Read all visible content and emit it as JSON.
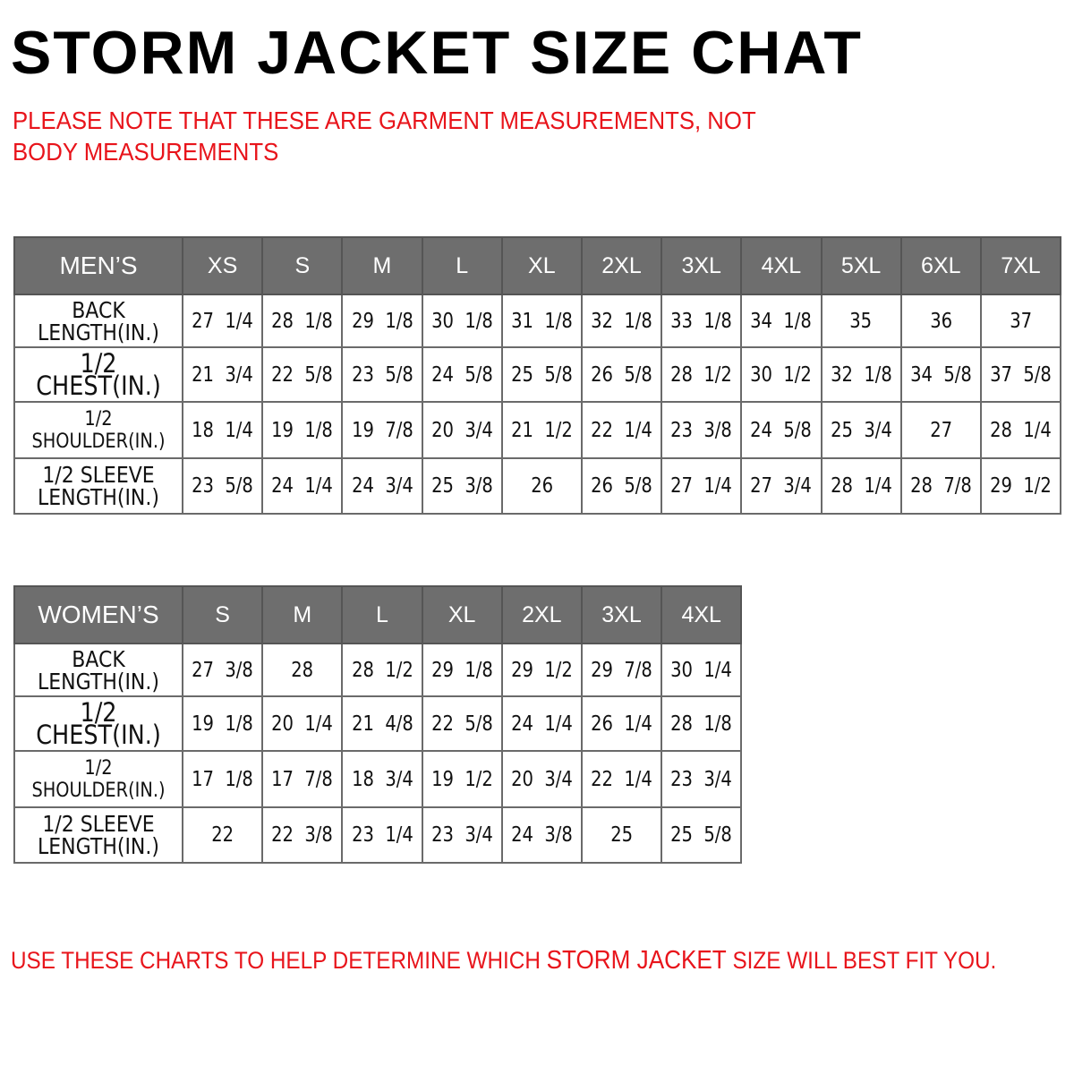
{
  "title": "STORM JACKET SIZE CHAT",
  "note": "PLEASE NOTE THAT THESE ARE GARMENT MEASUREMENTS, NOT BODY MEASUREMENTS",
  "footer": {
    "before": "USE THESE CHARTS TO HELP DETERMINE WHICH ",
    "highlight": "STORM JACKET",
    "after": "  SIZE WILL BEST FIT YOU."
  },
  "colors": {
    "header_bg": "#6e6e6e",
    "note_red": "#e8141b"
  },
  "mens": {
    "corner": "MEN’S",
    "sizes": [
      "XS",
      "S",
      "M",
      "L",
      "XL",
      "2XL",
      "3XL",
      "4XL",
      "5XL",
      "6XL",
      "7XL"
    ],
    "rows": [
      {
        "label": "BACK LENGTH(IN.)",
        "values": [
          "27  1/4",
          "28  1/8",
          "29  1/8",
          "30  1/8",
          "31  1/8",
          "32  1/8",
          "33  1/8",
          "34  1/8",
          "35",
          "36",
          "37"
        ]
      },
      {
        "label": "1/2  CHEST(IN.)",
        "values": [
          "21  3/4",
          "22  5/8",
          "23  5/8",
          "24  5/8",
          "25  5/8",
          "26  5/8",
          "28  1/2",
          "30  1/2",
          "32  1/8",
          "34  5/8",
          "37  5/8"
        ]
      },
      {
        "label": "1/2  SHOULDER(IN.)",
        "values": [
          "18  1/4",
          "19  1/8",
          "19  7/8",
          "20  3/4",
          "21  1/2",
          "22  1/4",
          "23  3/8",
          "24  5/8",
          "25  3/4",
          "27",
          "28  1/4"
        ]
      },
      {
        "label": "1/2  SLEEVE LENGTH(IN.)",
        "values": [
          "23  5/8",
          "24  1/4",
          "24  3/4",
          "25  3/8",
          "26",
          "26  5/8",
          "27  1/4",
          "27  3/4",
          "28  1/4",
          "28  7/8",
          "29  1/2"
        ]
      }
    ]
  },
  "womens": {
    "corner": "WOMEN’S",
    "sizes": [
      "S",
      "M",
      "L",
      "XL",
      "2XL",
      "3XL",
      "4XL"
    ],
    "rows": [
      {
        "label": "BACK LENGTH(IN.)",
        "values": [
          "27  3/8",
          "28",
          "28  1/2",
          "29  1/8",
          "29  1/2",
          "29  7/8",
          "30  1/4"
        ]
      },
      {
        "label": "1/2  CHEST(IN.)",
        "values": [
          "19  1/8",
          "20  1/4",
          "21  4/8",
          "22  5/8",
          "24  1/4",
          "26  1/4",
          "28  1/8"
        ]
      },
      {
        "label": "1/2  SHOULDER(IN.)",
        "values": [
          "17  1/8",
          "17  7/8",
          "18  3/4",
          "19  1/2",
          "20  3/4",
          "22  1/4",
          "23  3/4"
        ]
      },
      {
        "label": "1/2  SLEEVE LENGTH(IN.)",
        "values": [
          "22",
          "22  3/8",
          "23  1/4",
          "23  3/4",
          "24  3/8",
          "25",
          "25  5/8"
        ]
      }
    ]
  }
}
